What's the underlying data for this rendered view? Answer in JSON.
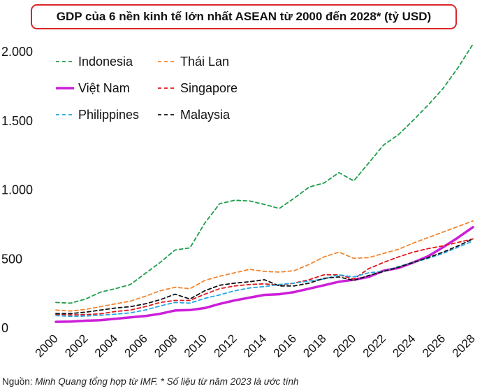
{
  "chart_data": {
    "type": "line",
    "title": "GDP của 6 nền kinh tế lớn nhất ASEAN từ 2000 đến 2028* (tỷ USD)",
    "xlabel": "",
    "ylabel": "",
    "x": [
      2000,
      2001,
      2002,
      2003,
      2004,
      2005,
      2006,
      2007,
      2008,
      2009,
      2010,
      2011,
      2012,
      2013,
      2014,
      2015,
      2016,
      2017,
      2018,
      2019,
      2020,
      2021,
      2022,
      2023,
      2024,
      2025,
      2026,
      2027,
      2028
    ],
    "x_tick_labels": [
      "2000",
      "2002",
      "2004",
      "2006",
      "2008",
      "2010",
      "2012",
      "2014",
      "2016",
      "2018",
      "2020",
      "2022",
      "2024",
      "2026",
      "2028"
    ],
    "y_tick_labels": [
      "0",
      "500",
      "1.000",
      "1.500",
      "2.000"
    ],
    "ylim": [
      0,
      2050
    ],
    "y_ticks": [
      0,
      500,
      1000,
      1500,
      2000
    ],
    "series": [
      {
        "name": "Indonesia",
        "color": "#1f9e4a",
        "style": "dashed",
        "values": [
          180,
          175,
          205,
          255,
          280,
          310,
          390,
          470,
          560,
          575,
          755,
          895,
          920,
          915,
          890,
          860,
          935,
          1015,
          1045,
          1120,
          1060,
          1190,
          1320,
          1395,
          1500,
          1610,
          1730,
          1880,
          2050
        ]
      },
      {
        "name": "Thái Lan",
        "color": "#f28630",
        "style": "dashed",
        "values": [
          125,
          118,
          130,
          150,
          170,
          190,
          225,
          265,
          290,
          280,
          340,
          370,
          395,
          420,
          405,
          400,
          410,
          455,
          510,
          545,
          500,
          505,
          535,
          565,
          610,
          650,
          690,
          730,
          770
        ]
      },
      {
        "name": "Việt Nam",
        "color": "#cc1fd9",
        "style": "solid",
        "values": [
          40,
          42,
          48,
          52,
          62,
          72,
          82,
          98,
          122,
          125,
          140,
          170,
          195,
          215,
          235,
          240,
          255,
          280,
          305,
          330,
          345,
          365,
          410,
          430,
          470,
          515,
          580,
          650,
          725
        ]
      },
      {
        "name": "Singapore",
        "color": "#e0181e",
        "style": "dashed",
        "values": [
          95,
          90,
          92,
          98,
          115,
          125,
          150,
          180,
          195,
          195,
          240,
          280,
          300,
          310,
          315,
          305,
          320,
          345,
          380,
          380,
          350,
          425,
          470,
          510,
          545,
          570,
          590,
          615,
          640
        ]
      },
      {
        "name": "Philippines",
        "color": "#22a8e8",
        "style": "dashed",
        "values": [
          85,
          80,
          82,
          88,
          95,
          105,
          125,
          155,
          180,
          175,
          210,
          235,
          265,
          285,
          295,
          310,
          320,
          335,
          350,
          380,
          365,
          395,
          405,
          440,
          470,
          500,
          535,
          580,
          625
        ]
      },
      {
        "name": "Malaysia",
        "color": "#111111",
        "style": "dashed",
        "values": [
          100,
          100,
          110,
          125,
          140,
          150,
          170,
          200,
          240,
          205,
          265,
          305,
          320,
          330,
          345,
          300,
          300,
          320,
          355,
          365,
          340,
          375,
          405,
          435,
          470,
          505,
          545,
          590,
          640
        ]
      }
    ],
    "legend_position": "top-left"
  },
  "source": {
    "prefix": "Nguồn: ",
    "text": "Minh Quang tổng hợp từ IMF. * Số liệu từ năm 2023 là ước tính"
  }
}
